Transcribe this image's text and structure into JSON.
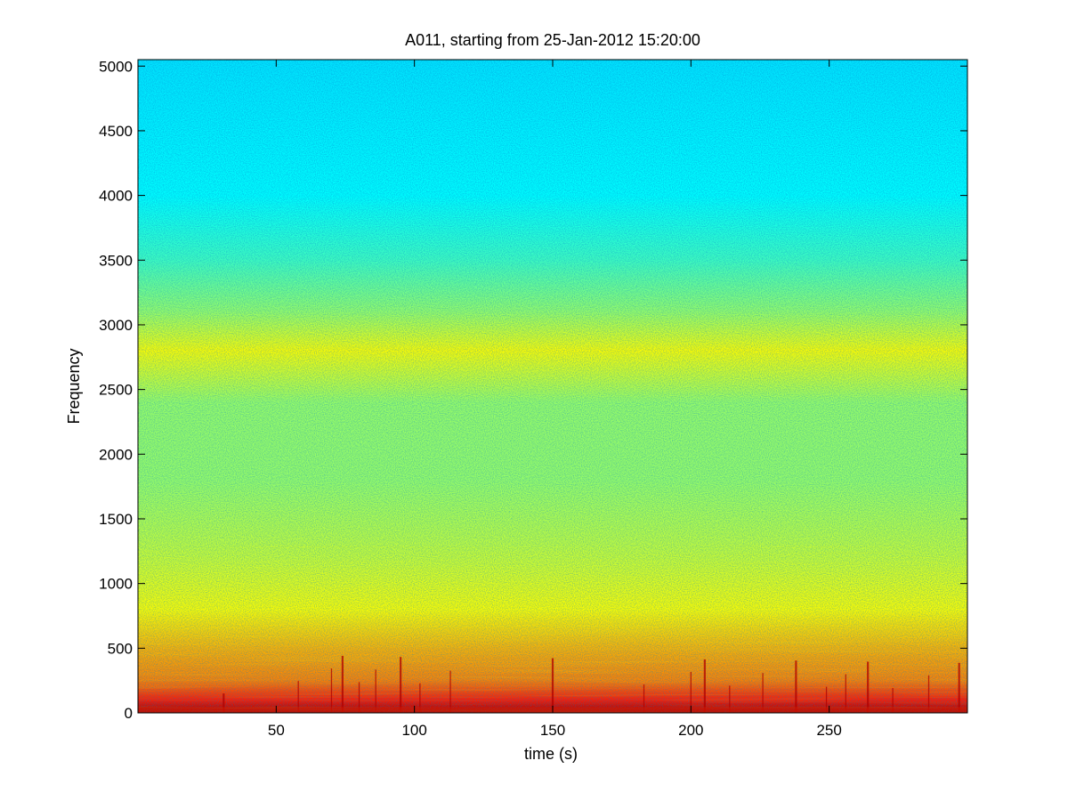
{
  "chart_data": {
    "type": "heatmap",
    "title": "A011, starting from 25-Jan-2012 15:20:00",
    "xlabel": "time (s)",
    "ylabel": "Frequency",
    "xlim": [
      0,
      300
    ],
    "ylim": [
      0,
      5050
    ],
    "xticks": [
      50,
      100,
      150,
      200,
      250
    ],
    "yticks": [
      0,
      500,
      1000,
      1500,
      2000,
      2500,
      3000,
      3500,
      4000,
      4500,
      5000
    ],
    "grid": false,
    "colormap": [
      "#00008f",
      "#0000ff",
      "#00ffff",
      "#ffff00",
      "#ff0000",
      "#800000"
    ],
    "intensity_profile": [
      {
        "frequency": 0,
        "level": 0.95
      },
      {
        "frequency": 100,
        "level": 0.78
      },
      {
        "frequency": 250,
        "level": 0.7
      },
      {
        "frequency": 500,
        "level": 0.66
      },
      {
        "frequency": 800,
        "level": 0.6
      },
      {
        "frequency": 1200,
        "level": 0.56
      },
      {
        "frequency": 1800,
        "level": 0.52
      },
      {
        "frequency": 2400,
        "level": 0.52
      },
      {
        "frequency": 2800,
        "level": 0.6
      },
      {
        "frequency": 3100,
        "level": 0.52
      },
      {
        "frequency": 3500,
        "level": 0.45
      },
      {
        "frequency": 4000,
        "level": 0.4
      },
      {
        "frequency": 5050,
        "level": 0.38
      }
    ],
    "transients_s": [
      31,
      58,
      70,
      74,
      80,
      86,
      95,
      102,
      113,
      150,
      183,
      200,
      205,
      214,
      226,
      238,
      249,
      256,
      264,
      273,
      286,
      297
    ]
  }
}
